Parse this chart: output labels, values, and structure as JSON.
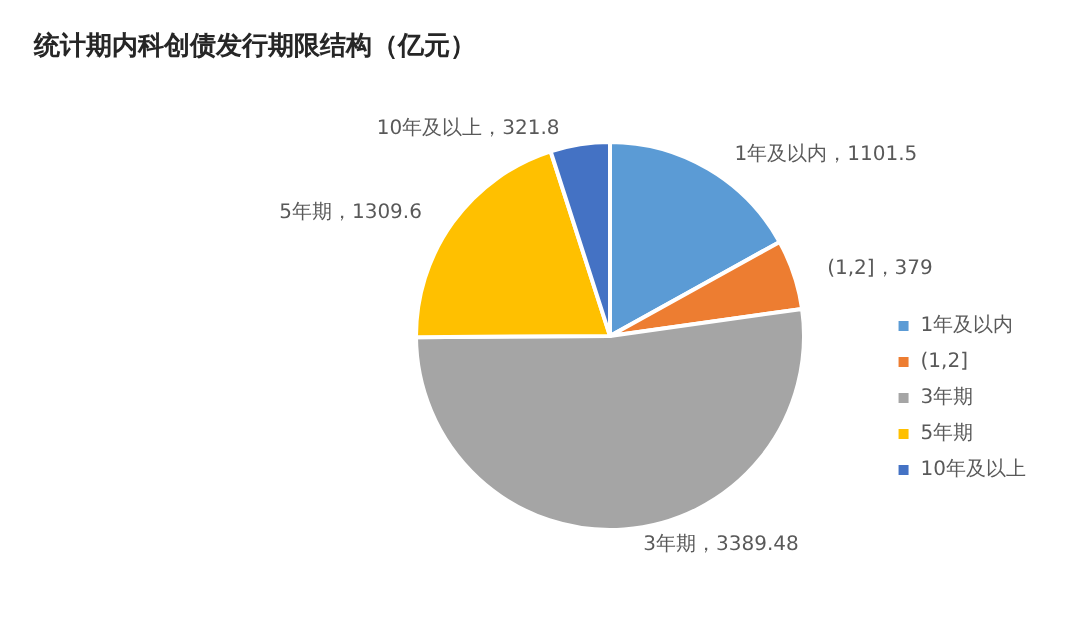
{
  "chart_data": {
    "type": "pie",
    "title": "统计期内科创债发行期限结构（亿元）",
    "categories": [
      "1年及以内",
      "(1,2]",
      "3年期",
      "5年期",
      "10年及以上"
    ],
    "values": [
      1101.5,
      379,
      3389.48,
      1309.6,
      321.8
    ],
    "colors": [
      "#5b9bd5",
      "#ed7d31",
      "#a5a5a5",
      "#ffc000",
      "#4472c4"
    ],
    "value_labels": [
      "1年及以内，1101.5",
      "(1,2]，379",
      "3年期，3389.48",
      "5年期，1309.6",
      "10年及以上，321.8"
    ],
    "legend": "right"
  }
}
